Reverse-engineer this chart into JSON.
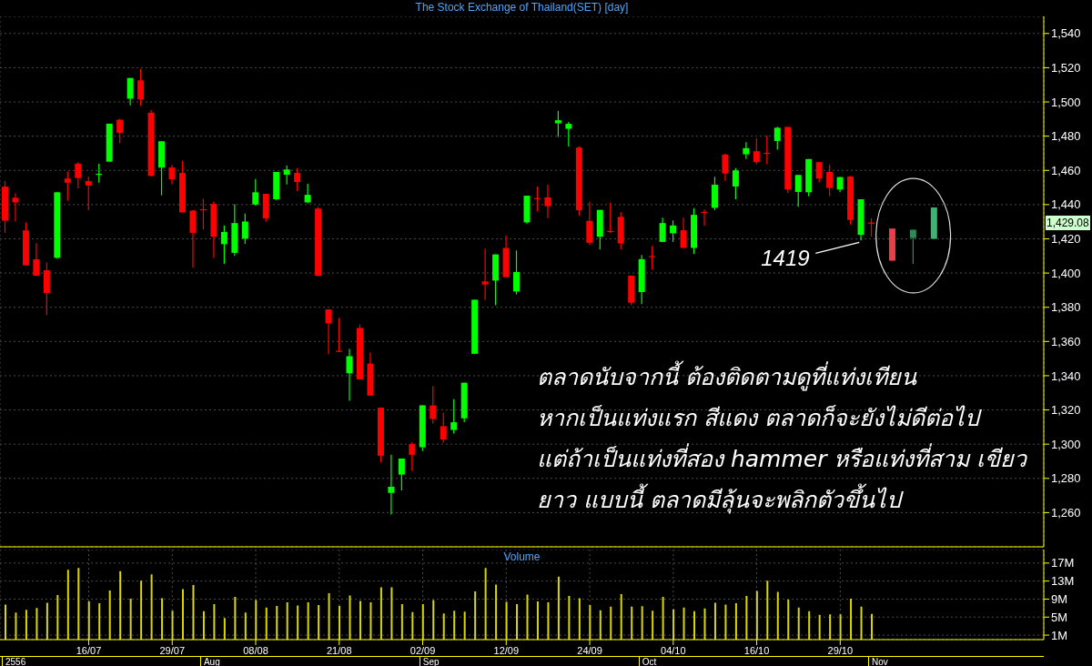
{
  "chart_data": [
    {
      "type": "candlestick",
      "title": "The Stock Exchange of Thailand(SET) [day]",
      "categories": [
        null,
        null,
        null,
        null,
        null,
        null,
        null,
        null,
        null,
        null,
        null,
        null,
        null,
        null,
        null,
        null,
        null,
        null,
        null,
        null,
        null,
        null,
        null,
        null,
        null,
        null,
        null,
        null,
        null,
        null,
        null,
        null,
        null,
        null,
        null,
        null,
        null,
        null,
        null,
        null,
        null,
        null,
        null,
        null,
        null,
        null,
        null,
        null,
        null,
        null,
        null,
        null,
        null,
        null,
        null,
        null,
        null,
        null,
        null,
        null,
        null,
        null,
        null,
        null,
        null,
        null,
        null,
        null,
        null,
        null,
        null,
        null,
        null,
        null,
        null,
        null,
        null,
        null,
        null,
        null,
        null,
        null,
        null,
        null,
        null,
        null,
        null,
        null,
        null,
        null,
        null,
        null,
        null,
        null,
        null,
        null,
        null,
        null,
        null,
        null
      ],
      "series": [
        {
          "ohlc": [
            [
              1450.5,
              1453.7,
              1423.5,
              1430.6
            ],
            [
              1444.0,
              1446.6,
              1430.1,
              1441.3
            ],
            [
              1424.9,
              1429.6,
              1404.5,
              1404.5
            ],
            [
              1408.0,
              1417.5,
              1398.4,
              1398.4
            ],
            [
              1401.6,
              1406.1,
              1375.5,
              1388.3
            ],
            [
              1408.9,
              1447.2,
              1408.4,
              1447.2
            ],
            [
              1455.2,
              1459.4,
              1442.2,
              1452.8
            ],
            [
              1463.9,
              1464.8,
              1449.5,
              1455.5
            ],
            [
              1453.7,
              1456.4,
              1436.8,
              1451.2
            ],
            [
              1457.4,
              1463.9,
              1452.8,
              1458.0
            ],
            [
              1465.1,
              1487.3,
              1465.1,
              1487.3
            ],
            [
              1489.6,
              1490.2,
              1475.8,
              1482.0
            ],
            [
              1501.9,
              1514.0,
              1498.0,
              1514.0
            ],
            [
              1512.6,
              1519.3,
              1497.6,
              1501.4
            ],
            [
              1493.7,
              1495.2,
              1456.4,
              1456.8
            ],
            [
              1461.6,
              1477.0,
              1445.4,
              1477.0
            ],
            [
              1461.7,
              1463.2,
              1451.8,
              1454.8
            ],
            [
              1458.5,
              1465.6,
              1435.4,
              1435.4
            ],
            [
              1436.5,
              1436.8,
              1403.1,
              1423.5
            ],
            [
              1437.3,
              1443.4,
              1425.6,
              1436.8
            ],
            [
              1440.4,
              1441.8,
              1408.8,
              1421.2
            ],
            [
              1416.9,
              1427.8,
              1405.4,
              1424.0
            ],
            [
              1411.8,
              1440.2,
              1410.0,
              1429.2
            ],
            [
              1420.1,
              1434.7,
              1417.1,
              1430.1
            ],
            [
              1440.0,
              1455.0,
              1439.5,
              1447.2
            ],
            [
              1446.3,
              1446.3,
              1430.1,
              1431.9
            ],
            [
              1443.1,
              1459.1,
              1442.4,
              1459.1
            ],
            [
              1457.5,
              1462.8,
              1451.8,
              1460.5
            ],
            [
              1458.5,
              1461.4,
              1447.9,
              1453.2
            ],
            [
              1441.3,
              1452.1,
              1440.9,
              1445.7
            ],
            [
              1437.7,
              1438.6,
              1398.0,
              1398.4
            ],
            [
              1378.7,
              1378.7,
              1352.4,
              1370.6
            ],
            [
              1354.6,
              1373.8,
              1353.9,
              1354.2
            ],
            [
              1341.4,
              1355.6,
              1325.4,
              1351.4
            ],
            [
              1367.9,
              1369.9,
              1337.9,
              1337.9
            ],
            [
              1347.1,
              1353.7,
              1328.4,
              1328.4
            ],
            [
              1321.3,
              1321.5,
              1289.3,
              1293.2
            ],
            [
              1271.5,
              1293.8,
              1258.9,
              1275.1
            ],
            [
              1282.2,
              1291.6,
              1273.0,
              1291.6
            ],
            [
              1300.0,
              1301.2,
              1284.3,
              1293.8
            ],
            [
              1298.2,
              1322.7,
              1295.9,
              1322.7
            ],
            [
              1322.6,
              1333.8,
              1312.1,
              1314.7
            ],
            [
              1310.5,
              1318.3,
              1300.9,
              1302.7
            ],
            [
              1308.3,
              1326.3,
              1306.2,
              1312.8
            ],
            [
              1315.1,
              1335.9,
              1312.8,
              1335.9
            ],
            [
              1352.8,
              1384.4,
              1352.8,
              1384.4
            ],
            [
              1395.1,
              1414.3,
              1384.4,
              1393.3
            ],
            [
              1395.6,
              1410.9,
              1381.2,
              1410.9
            ],
            [
              1414.7,
              1421.8,
              1397.6,
              1397.6
            ],
            [
              1389.2,
              1413.2,
              1387.5,
              1400.6
            ],
            [
              1429.6,
              1445.2,
              1428.9,
              1445.2
            ],
            [
              1443.8,
              1450.6,
              1436.0,
              1443.4
            ],
            [
              1444.2,
              1451.6,
              1432.1,
              1439.0
            ],
            [
              1487.5,
              1494.7,
              1479.5,
              1489.3
            ],
            [
              1484.3,
              1488.3,
              1473.9,
              1487.2
            ],
            [
              1473.3,
              1474.0,
              1433.5,
              1436.7
            ],
            [
              1430.5,
              1441.7,
              1416.4,
              1417.7
            ],
            [
              1421.2,
              1436.9,
              1413.8,
              1436.9
            ],
            [
              1424.6,
              1441.0,
              1423.5,
              1424.0
            ],
            [
              1432.8,
              1435.6,
              1413.8,
              1417.3
            ],
            [
              1398.5,
              1398.5,
              1381.2,
              1382.7
            ],
            [
              1388.9,
              1410.6,
              1381.8,
              1408.1
            ],
            [
              1409.9,
              1415.9,
              1401.9,
              1409.5
            ],
            [
              1418.2,
              1432.4,
              1418.2,
              1429.2
            ],
            [
              1423.2,
              1430.7,
              1418.2,
              1427.8
            ],
            [
              1425.0,
              1432.4,
              1414.7,
              1414.7
            ],
            [
              1414.7,
              1437.9,
              1411.1,
              1434.0
            ],
            [
              1435.8,
              1437.2,
              1427.6,
              1435.3
            ],
            [
              1438.1,
              1456.3,
              1436.7,
              1451.6
            ],
            [
              1469.2,
              1469.8,
              1453.8,
              1458.2
            ],
            [
              1450.6,
              1461.4,
              1443.1,
              1460.0
            ],
            [
              1469.4,
              1476.5,
              1466.6,
              1473.0
            ],
            [
              1471.2,
              1478.7,
              1463.6,
              1464.8
            ],
            [
              1470.3,
              1480.4,
              1463.6,
              1469.8
            ],
            [
              1477.2,
              1485.4,
              1472.1,
              1484.9
            ],
            [
              1485.4,
              1485.4,
              1446.7,
              1448.8
            ],
            [
              1447.4,
              1457.3,
              1438.7,
              1457.3
            ],
            [
              1447.2,
              1466.6,
              1444.9,
              1466.6
            ],
            [
              1464.8,
              1465.0,
              1452.9,
              1455.2
            ],
            [
              1459.1,
              1463.5,
              1444.9,
              1449.7
            ],
            [
              1448.8,
              1456.1,
              1447.2,
              1456.1
            ],
            [
              1456.4,
              1456.8,
              1428.3,
              1431.0
            ],
            [
              1422.3,
              1443.1,
              1419,
              1443.1
            ],
            [
              1429.5,
              1432.1,
              1421.4,
              1429.08
            ],
            null,
            null,
            null,
            null,
            null,
            null,
            null,
            null,
            null,
            null,
            null,
            null,
            null,
            null,
            null,
            null
          ],
          "colors": [
            "#ff0000",
            "#ff0000",
            "#ff0000",
            "#ff0000",
            "#ff0000",
            "#00ff00",
            "#ff0000",
            "#ff0000",
            "#ff0000",
            "#00ff00",
            "#00ff00",
            "#ff0000",
            "#00ff00",
            "#ff0000",
            "#ff0000",
            "#00ff00",
            "#ff0000",
            "#ff0000",
            "#ff0000",
            "#ff0000",
            "#ff0000",
            "#00ff00",
            "#00ff00",
            "#00ff00",
            "#00ff00",
            "#ff0000",
            "#00ff00",
            "#00ff00",
            "#ff0000",
            "#00ff00",
            "#ff0000",
            "#ff0000",
            "#ff0000",
            "#00ff00",
            "#ff0000",
            "#ff0000",
            "#ff0000",
            "#00ff00",
            "#00ff00",
            "#ff0000",
            "#00ff00",
            "#ff0000",
            "#ff0000",
            "#00ff00",
            "#00ff00",
            "#00ff00",
            "#ff0000",
            "#00ff00",
            "#ff0000",
            "#00ff00",
            "#00ff00",
            "#ff0000",
            "#ff0000",
            "#00ff00",
            "#00ff00",
            "#ff0000",
            "#ff0000",
            "#00ff00",
            "#ff0000",
            "#ff0000",
            "#ff0000",
            "#00ff00",
            "#ff0000",
            "#00ff00",
            "#00ff00",
            "#ff0000",
            "#00ff00",
            "#ff0000",
            "#00ff00",
            "#ff0000",
            "#00ff00",
            "#00ff00",
            "#ff0000",
            "#ff0000",
            "#00ff00",
            "#ff0000",
            "#00ff00",
            "#00ff00",
            "#ff0000",
            "#ff0000",
            "#00ff00",
            "#ff0000",
            "#00ff00",
            "#ff0000",
            null,
            null,
            null,
            null,
            null,
            null,
            null,
            null,
            null,
            null,
            null,
            null,
            null,
            null,
            null,
            null
          ]
        },
        {
          "ohlc": [
            null,
            null,
            null,
            null,
            null,
            null,
            null,
            null,
            null,
            null,
            null,
            null,
            null,
            null,
            null,
            null,
            null,
            null,
            null,
            null,
            null,
            null,
            null,
            null,
            null,
            null,
            null,
            null,
            null,
            null,
            null,
            null,
            null,
            null,
            null,
            null,
            null,
            null,
            null,
            null,
            null,
            null,
            null,
            null,
            null,
            null,
            null,
            null,
            null,
            null,
            null,
            null,
            null,
            null,
            null,
            null,
            null,
            null,
            null,
            null,
            null,
            null,
            null,
            null,
            null,
            null,
            null,
            null,
            null,
            null,
            null,
            null,
            null,
            null,
            null,
            null,
            null,
            null,
            null,
            null,
            null,
            null,
            null,
            null,
            null,
            [
              1426.0,
              1426.0,
              1407.2,
              1407.2
            ],
            null,
            [
              1420.5,
              1425.3,
              1405.4,
              1425.3
            ],
            null,
            [
              1420.0,
              1438.3,
              1420.0,
              1438.3
            ],
            null,
            null,
            null,
            null,
            null,
            null,
            null,
            null,
            null,
            null
          ],
          "colors": [
            null,
            null,
            null,
            null,
            null,
            null,
            null,
            null,
            null,
            null,
            null,
            null,
            null,
            null,
            null,
            null,
            null,
            null,
            null,
            null,
            null,
            null,
            null,
            null,
            null,
            null,
            null,
            null,
            null,
            null,
            null,
            null,
            null,
            null,
            null,
            null,
            null,
            null,
            null,
            null,
            null,
            null,
            null,
            null,
            null,
            null,
            null,
            null,
            null,
            null,
            null,
            null,
            null,
            null,
            null,
            null,
            null,
            null,
            null,
            null,
            null,
            null,
            null,
            null,
            null,
            null,
            null,
            null,
            null,
            null,
            null,
            null,
            null,
            null,
            null,
            null,
            null,
            null,
            null,
            null,
            null,
            null,
            null,
            null,
            null,
            "#e8404a",
            null,
            "#2e8b57",
            null,
            "#3cb371",
            null,
            null,
            null,
            null,
            null,
            null,
            null,
            null,
            null,
            null
          ]
        }
      ],
      "ylim": [
        1240,
        1550
      ],
      "yticks": [
        {
          "value": 1260,
          "label": "1,260"
        },
        {
          "value": 1280,
          "label": "1,280"
        },
        {
          "value": 1300,
          "label": "1,300"
        },
        {
          "value": 1320,
          "label": "1,320"
        },
        {
          "value": 1340,
          "label": "1,340"
        },
        {
          "value": 1360,
          "label": "1,360"
        },
        {
          "value": 1380,
          "label": "1,380"
        },
        {
          "value": 1400,
          "label": "1,400"
        },
        {
          "value": 1420,
          "label": "1,420"
        },
        {
          "value": 1440,
          "label": "1,440"
        },
        {
          "value": 1460,
          "label": "1,460"
        },
        {
          "value": 1480,
          "label": "1,480"
        },
        {
          "value": 1500,
          "label": "1,500"
        },
        {
          "value": 1520,
          "label": "1,520"
        },
        {
          "value": 1540,
          "label": "1,540"
        }
      ],
      "grid": true,
      "tick_labels": "y",
      "annotations": [
        "1419",
        "1,429.08",
        "ตลาดนับจากนี้ ต้องติดตามดูที่แท่งเทียน",
        "หากเป็นแท่งแรก สีแดง ตลาดก็จะยังไม่ดีต่อไป",
        "แต่ถ้าเป็นแท่งที่สอง hammer หรือแท่งที่สาม เขียว",
        "ยาว แบบนี้ ตลาดมีลุ้นจะพลิกตัวขึ้นไป"
      ]
    },
    {
      "type": "bar",
      "title": "Volume",
      "categories": [
        null,
        null,
        null,
        null,
        null,
        null,
        null,
        null,
        "16/07",
        null,
        null,
        null,
        null,
        null,
        null,
        null,
        "29/07",
        null,
        null,
        null,
        null,
        null,
        null,
        null,
        "08/08",
        null,
        null,
        null,
        null,
        null,
        null,
        null,
        "21/08",
        null,
        null,
        null,
        null,
        null,
        null,
        null,
        "02/09",
        null,
        null,
        null,
        null,
        null,
        null,
        null,
        "12/09",
        null,
        null,
        null,
        null,
        null,
        null,
        null,
        "24/09",
        null,
        null,
        null,
        null,
        null,
        null,
        null,
        "04/10",
        null,
        null,
        null,
        null,
        null,
        null,
        null,
        "16/10",
        null,
        null,
        null,
        null,
        null,
        null,
        null,
        "29/10",
        null,
        null,
        null,
        null,
        null,
        null,
        null,
        null,
        null,
        null,
        null,
        null,
        null,
        null,
        null,
        null,
        null,
        null,
        null
      ],
      "values": [
        7.8,
        6.0,
        6.6,
        7.0,
        8.2,
        9.9,
        15.5,
        15.9,
        8.5,
        8.1,
        10.9,
        15.2,
        9.1,
        13.1,
        14.5,
        9.2,
        6.4,
        11.2,
        12.1,
        6.3,
        7.9,
        4.8,
        9.5,
        6.0,
        8.8,
        7.1,
        7.5,
        8.3,
        7.6,
        8.3,
        7.7,
        10.3,
        7.5,
        9.8,
        8.6,
        8.3,
        11.6,
        11.6,
        7.9,
        6.1,
        7.9,
        8.8,
        5.8,
        6.4,
        6.2,
        10.7,
        15.9,
        12.2,
        8.4,
        7.9,
        10.0,
        8.5,
        8.3,
        14.0,
        9.7,
        9.2,
        7.7,
        6.5,
        7.3,
        10.1,
        7.3,
        7.4,
        6.4,
        9.5,
        6.7,
        7.1,
        6.3,
        6.9,
        8.2,
        7.8,
        8.1,
        9.7,
        10.8,
        13.1,
        10.6,
        8.9,
        7.1,
        6.3,
        5.5,
        5.6,
        5.6,
        9.1,
        7.3,
        5.7,
        null,
        null,
        null,
        null,
        null,
        null,
        null,
        null,
        null,
        null,
        null,
        null,
        null,
        null,
        null,
        null
      ],
      "color": "#d8d800",
      "ylim": [
        0,
        20
      ],
      "yticks": [
        {
          "value": 1,
          "label": "1M"
        },
        {
          "value": 5,
          "label": "5M"
        },
        {
          "value": 9,
          "label": "9M"
        },
        {
          "value": 13,
          "label": "13M"
        },
        {
          "value": 17,
          "label": "17M"
        }
      ],
      "grid": true,
      "annotations": [
        "2556",
        "Aug",
        "Sep",
        "Oct",
        "Nov"
      ]
    }
  ]
}
